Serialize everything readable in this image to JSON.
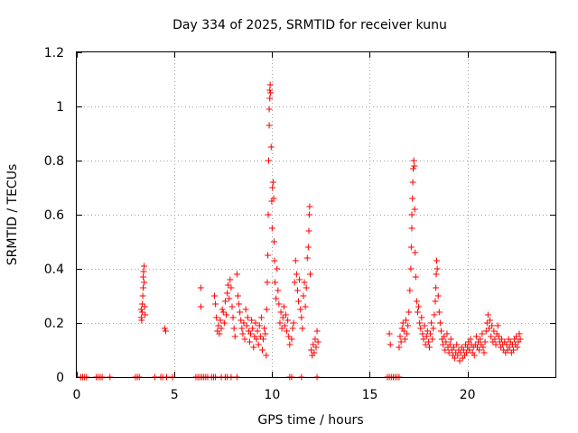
{
  "chart_data": {
    "type": "scatter",
    "title": "Day 334 of 2025, SRMTID for receiver kunu",
    "xlabel": "GPS time / hours",
    "ylabel": "SRMTID / TECUs",
    "xlim": [
      0,
      24.5
    ],
    "ylim": [
      0,
      1.2
    ],
    "xticks": [
      0,
      5,
      10,
      15,
      20
    ],
    "xtick_labels": [
      "0",
      "5",
      "10",
      "15",
      "20"
    ],
    "yticks": [
      0,
      0.2,
      0.4,
      0.6,
      0.8,
      1,
      1.2
    ],
    "ytick_labels": [
      "0",
      "0.2",
      "0.4",
      "0.6",
      "0.8",
      "1",
      "1.2"
    ],
    "grid": true,
    "marker": "+",
    "color": "#ff0000",
    "series": [
      {
        "name": "SRMTID",
        "points": [
          [
            0.2,
            0.0
          ],
          [
            0.3,
            0.0
          ],
          [
            0.4,
            0.0
          ],
          [
            0.5,
            0.0
          ],
          [
            1.0,
            0.0
          ],
          [
            1.1,
            0.0
          ],
          [
            1.2,
            0.0
          ],
          [
            1.3,
            0.0
          ],
          [
            1.7,
            0.0
          ],
          [
            3.0,
            0.0
          ],
          [
            3.1,
            0.0
          ],
          [
            3.2,
            0.0
          ],
          [
            4.0,
            0.0
          ],
          [
            4.3,
            0.0
          ],
          [
            4.4,
            0.0
          ],
          [
            4.6,
            0.0
          ],
          [
            4.9,
            0.0
          ],
          [
            6.1,
            0.0
          ],
          [
            6.2,
            0.0
          ],
          [
            6.3,
            0.0
          ],
          [
            6.4,
            0.0
          ],
          [
            6.5,
            0.0
          ],
          [
            6.6,
            0.0
          ],
          [
            6.7,
            0.0
          ],
          [
            6.9,
            0.0
          ],
          [
            7.0,
            0.0
          ],
          [
            7.1,
            0.0
          ],
          [
            7.4,
            0.0
          ],
          [
            7.6,
            0.0
          ],
          [
            7.7,
            0.0
          ],
          [
            7.9,
            0.0
          ],
          [
            8.2,
            0.0
          ],
          [
            10.9,
            0.0
          ],
          [
            11.0,
            0.0
          ],
          [
            11.5,
            0.0
          ],
          [
            12.3,
            0.0
          ],
          [
            15.9,
            0.0
          ],
          [
            16.0,
            0.0
          ],
          [
            16.1,
            0.0
          ],
          [
            16.2,
            0.0
          ],
          [
            16.3,
            0.0
          ],
          [
            16.4,
            0.0
          ],
          [
            16.5,
            0.0
          ],
          [
            3.3,
            0.22
          ],
          [
            3.3,
            0.25
          ],
          [
            3.32,
            0.21
          ],
          [
            3.35,
            0.27
          ],
          [
            3.35,
            0.24
          ],
          [
            3.38,
            0.3
          ],
          [
            3.4,
            0.33
          ],
          [
            3.4,
            0.37
          ],
          [
            3.42,
            0.39
          ],
          [
            3.45,
            0.41
          ],
          [
            3.45,
            0.35
          ],
          [
            3.48,
            0.26
          ],
          [
            3.5,
            0.23
          ],
          [
            4.5,
            0.18
          ],
          [
            4.55,
            0.17
          ],
          [
            6.35,
            0.33
          ],
          [
            6.35,
            0.26
          ],
          [
            7.05,
            0.3
          ],
          [
            7.1,
            0.27
          ],
          [
            7.15,
            0.22
          ],
          [
            7.2,
            0.17
          ],
          [
            7.25,
            0.19
          ],
          [
            7.3,
            0.16
          ],
          [
            7.35,
            0.21
          ],
          [
            7.4,
            0.18
          ],
          [
            7.45,
            0.25
          ],
          [
            7.5,
            0.24
          ],
          [
            7.55,
            0.2
          ],
          [
            7.6,
            0.28
          ],
          [
            7.65,
            0.23
          ],
          [
            7.7,
            0.31
          ],
          [
            7.75,
            0.34
          ],
          [
            7.8,
            0.29
          ],
          [
            7.85,
            0.36
          ],
          [
            7.9,
            0.33
          ],
          [
            7.95,
            0.26
          ],
          [
            8.0,
            0.22
          ],
          [
            8.05,
            0.18
          ],
          [
            8.1,
            0.15
          ],
          [
            8.2,
            0.38
          ],
          [
            8.25,
            0.3
          ],
          [
            8.3,
            0.27
          ],
          [
            8.35,
            0.24
          ],
          [
            8.4,
            0.21
          ],
          [
            8.45,
            0.18
          ],
          [
            8.5,
            0.16
          ],
          [
            8.55,
            0.2
          ],
          [
            8.6,
            0.14
          ],
          [
            8.65,
            0.25
          ],
          [
            8.7,
            0.19
          ],
          [
            8.75,
            0.22
          ],
          [
            8.8,
            0.17
          ],
          [
            8.85,
            0.13
          ],
          [
            8.9,
            0.16
          ],
          [
            8.95,
            0.21
          ],
          [
            9.0,
            0.18
          ],
          [
            9.05,
            0.11
          ],
          [
            9.1,
            0.15
          ],
          [
            9.15,
            0.2
          ],
          [
            9.2,
            0.14
          ],
          [
            9.25,
            0.17
          ],
          [
            9.3,
            0.12
          ],
          [
            9.35,
            0.19
          ],
          [
            9.4,
            0.15
          ],
          [
            9.45,
            0.22
          ],
          [
            9.5,
            0.1
          ],
          [
            9.55,
            0.14
          ],
          [
            9.6,
            0.18
          ],
          [
            9.65,
            0.16
          ],
          [
            9.7,
            0.08
          ],
          [
            9.72,
            0.25
          ],
          [
            9.75,
            0.35
          ],
          [
            9.78,
            0.45
          ],
          [
            9.8,
            0.6
          ],
          [
            9.82,
            0.8
          ],
          [
            9.85,
            0.93
          ],
          [
            9.85,
            0.99
          ],
          [
            9.88,
            1.03
          ],
          [
            9.88,
            1.06
          ],
          [
            9.9,
            1.08
          ],
          [
            9.92,
            1.05
          ],
          [
            9.95,
            0.85
          ],
          [
            9.98,
            0.65
          ],
          [
            10.0,
            0.55
          ],
          [
            10.02,
            0.7
          ],
          [
            10.05,
            0.72
          ],
          [
            10.08,
            0.66
          ],
          [
            10.1,
            0.5
          ],
          [
            10.12,
            0.43
          ],
          [
            10.15,
            0.35
          ],
          [
            10.2,
            0.29
          ],
          [
            10.25,
            0.4
          ],
          [
            10.3,
            0.32
          ],
          [
            10.35,
            0.27
          ],
          [
            10.4,
            0.2
          ],
          [
            10.45,
            0.24
          ],
          [
            10.5,
            0.18
          ],
          [
            10.55,
            0.22
          ],
          [
            10.6,
            0.26
          ],
          [
            10.65,
            0.19
          ],
          [
            10.7,
            0.23
          ],
          [
            10.75,
            0.17
          ],
          [
            10.8,
            0.21
          ],
          [
            10.85,
            0.15
          ],
          [
            10.9,
            0.12
          ],
          [
            11.0,
            0.14
          ],
          [
            11.05,
            0.18
          ],
          [
            11.1,
            0.2
          ],
          [
            11.15,
            0.35
          ],
          [
            11.2,
            0.43
          ],
          [
            11.25,
            0.38
          ],
          [
            11.3,
            0.32
          ],
          [
            11.35,
            0.28
          ],
          [
            11.4,
            0.36
          ],
          [
            11.45,
            0.25
          ],
          [
            11.5,
            0.22
          ],
          [
            11.55,
            0.18
          ],
          [
            11.6,
            0.3
          ],
          [
            11.65,
            0.35
          ],
          [
            11.7,
            0.26
          ],
          [
            11.75,
            0.33
          ],
          [
            11.8,
            0.44
          ],
          [
            11.85,
            0.48
          ],
          [
            11.88,
            0.54
          ],
          [
            11.9,
            0.6
          ],
          [
            11.92,
            0.63
          ],
          [
            11.95,
            0.38
          ],
          [
            12.0,
            0.1
          ],
          [
            12.05,
            0.08
          ],
          [
            12.1,
            0.12
          ],
          [
            12.15,
            0.09
          ],
          [
            12.2,
            0.14
          ],
          [
            12.25,
            0.11
          ],
          [
            12.3,
            0.17
          ],
          [
            12.35,
            0.13
          ],
          [
            16.0,
            0.16
          ],
          [
            16.05,
            0.12
          ],
          [
            16.5,
            0.11
          ],
          [
            16.55,
            0.15
          ],
          [
            16.6,
            0.13
          ],
          [
            16.65,
            0.18
          ],
          [
            16.7,
            0.2
          ],
          [
            16.75,
            0.17
          ],
          [
            16.8,
            0.14
          ],
          [
            16.85,
            0.21
          ],
          [
            16.9,
            0.16
          ],
          [
            16.95,
            0.19
          ],
          [
            17.0,
            0.24
          ],
          [
            17.05,
            0.32
          ],
          [
            17.1,
            0.4
          ],
          [
            17.12,
            0.48
          ],
          [
            17.15,
            0.55
          ],
          [
            17.15,
            0.6
          ],
          [
            17.18,
            0.66
          ],
          [
            17.2,
            0.72
          ],
          [
            17.22,
            0.77
          ],
          [
            17.25,
            0.8
          ],
          [
            17.28,
            0.78
          ],
          [
            17.3,
            0.62
          ],
          [
            17.32,
            0.46
          ],
          [
            17.35,
            0.37
          ],
          [
            17.4,
            0.28
          ],
          [
            17.45,
            0.24
          ],
          [
            17.5,
            0.26
          ],
          [
            17.55,
            0.2
          ],
          [
            17.6,
            0.18
          ],
          [
            17.65,
            0.22
          ],
          [
            17.7,
            0.16
          ],
          [
            17.75,
            0.14
          ],
          [
            17.8,
            0.19
          ],
          [
            17.85,
            0.12
          ],
          [
            17.9,
            0.15
          ],
          [
            17.95,
            0.17
          ],
          [
            18.0,
            0.13
          ],
          [
            18.05,
            0.11
          ],
          [
            18.1,
            0.16
          ],
          [
            18.15,
            0.2
          ],
          [
            18.2,
            0.14
          ],
          [
            18.25,
            0.18
          ],
          [
            18.3,
            0.23
          ],
          [
            18.35,
            0.28
          ],
          [
            18.38,
            0.33
          ],
          [
            18.4,
            0.38
          ],
          [
            18.42,
            0.43
          ],
          [
            18.45,
            0.4
          ],
          [
            18.5,
            0.3
          ],
          [
            18.55,
            0.24
          ],
          [
            18.6,
            0.2
          ],
          [
            18.65,
            0.17
          ],
          [
            18.7,
            0.14
          ],
          [
            18.75,
            0.12
          ],
          [
            18.8,
            0.15
          ],
          [
            18.85,
            0.1
          ],
          [
            18.9,
            0.13
          ],
          [
            18.95,
            0.16
          ],
          [
            19.0,
            0.11
          ],
          [
            19.05,
            0.09
          ],
          [
            19.1,
            0.12
          ],
          [
            19.15,
            0.14
          ],
          [
            19.2,
            0.1
          ],
          [
            19.25,
            0.08
          ],
          [
            19.3,
            0.11
          ],
          [
            19.35,
            0.07
          ],
          [
            19.4,
            0.09
          ],
          [
            19.45,
            0.12
          ],
          [
            19.5,
            0.08
          ],
          [
            19.55,
            0.1
          ],
          [
            19.6,
            0.06
          ],
          [
            19.65,
            0.09
          ],
          [
            19.7,
            0.11
          ],
          [
            19.75,
            0.07
          ],
          [
            19.8,
            0.1
          ],
          [
            19.85,
            0.08
          ],
          [
            19.9,
            0.12
          ],
          [
            19.95,
            0.09
          ],
          [
            20.0,
            0.11
          ],
          [
            20.05,
            0.13
          ],
          [
            20.1,
            0.1
          ],
          [
            20.15,
            0.14
          ],
          [
            20.2,
            0.12
          ],
          [
            20.25,
            0.09
          ],
          [
            20.3,
            0.11
          ],
          [
            20.35,
            0.08
          ],
          [
            20.4,
            0.12
          ],
          [
            20.45,
            0.15
          ],
          [
            20.5,
            0.11
          ],
          [
            20.55,
            0.13
          ],
          [
            20.6,
            0.1
          ],
          [
            20.65,
            0.14
          ],
          [
            20.7,
            0.12
          ],
          [
            20.75,
            0.16
          ],
          [
            20.8,
            0.11
          ],
          [
            20.85,
            0.09
          ],
          [
            20.9,
            0.13
          ],
          [
            20.95,
            0.17
          ],
          [
            21.0,
            0.2
          ],
          [
            21.05,
            0.23
          ],
          [
            21.1,
            0.18
          ],
          [
            21.15,
            0.21
          ],
          [
            21.2,
            0.15
          ],
          [
            21.25,
            0.19
          ],
          [
            21.3,
            0.13
          ],
          [
            21.35,
            0.17
          ],
          [
            21.4,
            0.14
          ],
          [
            21.45,
            0.12
          ],
          [
            21.5,
            0.16
          ],
          [
            21.55,
            0.19
          ],
          [
            21.6,
            0.15
          ],
          [
            21.65,
            0.13
          ],
          [
            21.7,
            0.11
          ],
          [
            21.75,
            0.14
          ],
          [
            21.8,
            0.12
          ],
          [
            21.85,
            0.1
          ],
          [
            21.9,
            0.13
          ],
          [
            21.95,
            0.09
          ],
          [
            22.0,
            0.12
          ],
          [
            22.05,
            0.1
          ],
          [
            22.1,
            0.14
          ],
          [
            22.15,
            0.11
          ],
          [
            22.2,
            0.13
          ],
          [
            22.25,
            0.09
          ],
          [
            22.3,
            0.12
          ],
          [
            22.35,
            0.1
          ],
          [
            22.4,
            0.14
          ],
          [
            22.45,
            0.12
          ],
          [
            22.5,
            0.15
          ],
          [
            22.55,
            0.11
          ],
          [
            22.6,
            0.13
          ],
          [
            22.65,
            0.16
          ],
          [
            22.7,
            0.14
          ]
        ]
      }
    ]
  }
}
